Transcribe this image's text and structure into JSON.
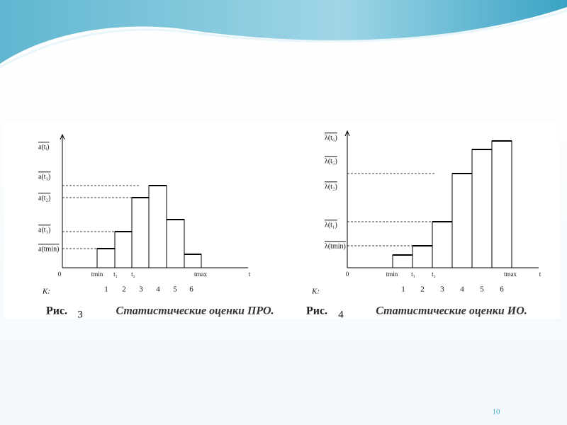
{
  "figures": [
    {
      "y_labels": [
        "a(tᵢ)",
        "a(t₃)",
        "a(t₂)",
        "a(t₁)",
        "a(tmin)"
      ],
      "x_labels": [
        "0",
        "tmin",
        "t₁",
        "t₂",
        "tmax",
        "t"
      ],
      "k_label": "K:",
      "k_numbers": [
        1,
        2,
        3,
        4,
        5,
        6
      ],
      "caption_prefix": "Рис.",
      "figure_number": 3,
      "caption": "Статистические оценки ПРО."
    },
    {
      "y_labels": [
        "λ(t₆)",
        "λ(t₅)",
        "λ(t₂)",
        "λ(t₁)",
        "λ(tmin)"
      ],
      "x_labels": [
        "0",
        "tmin",
        "t₁",
        "t₂",
        "tmax",
        "t"
      ],
      "k_label": "K:",
      "k_numbers": [
        1,
        2,
        3,
        4,
        5,
        6
      ],
      "caption_prefix": "Рис.",
      "figure_number": 4,
      "caption": "Статистические оценки ИО."
    }
  ],
  "page_number": 10
}
